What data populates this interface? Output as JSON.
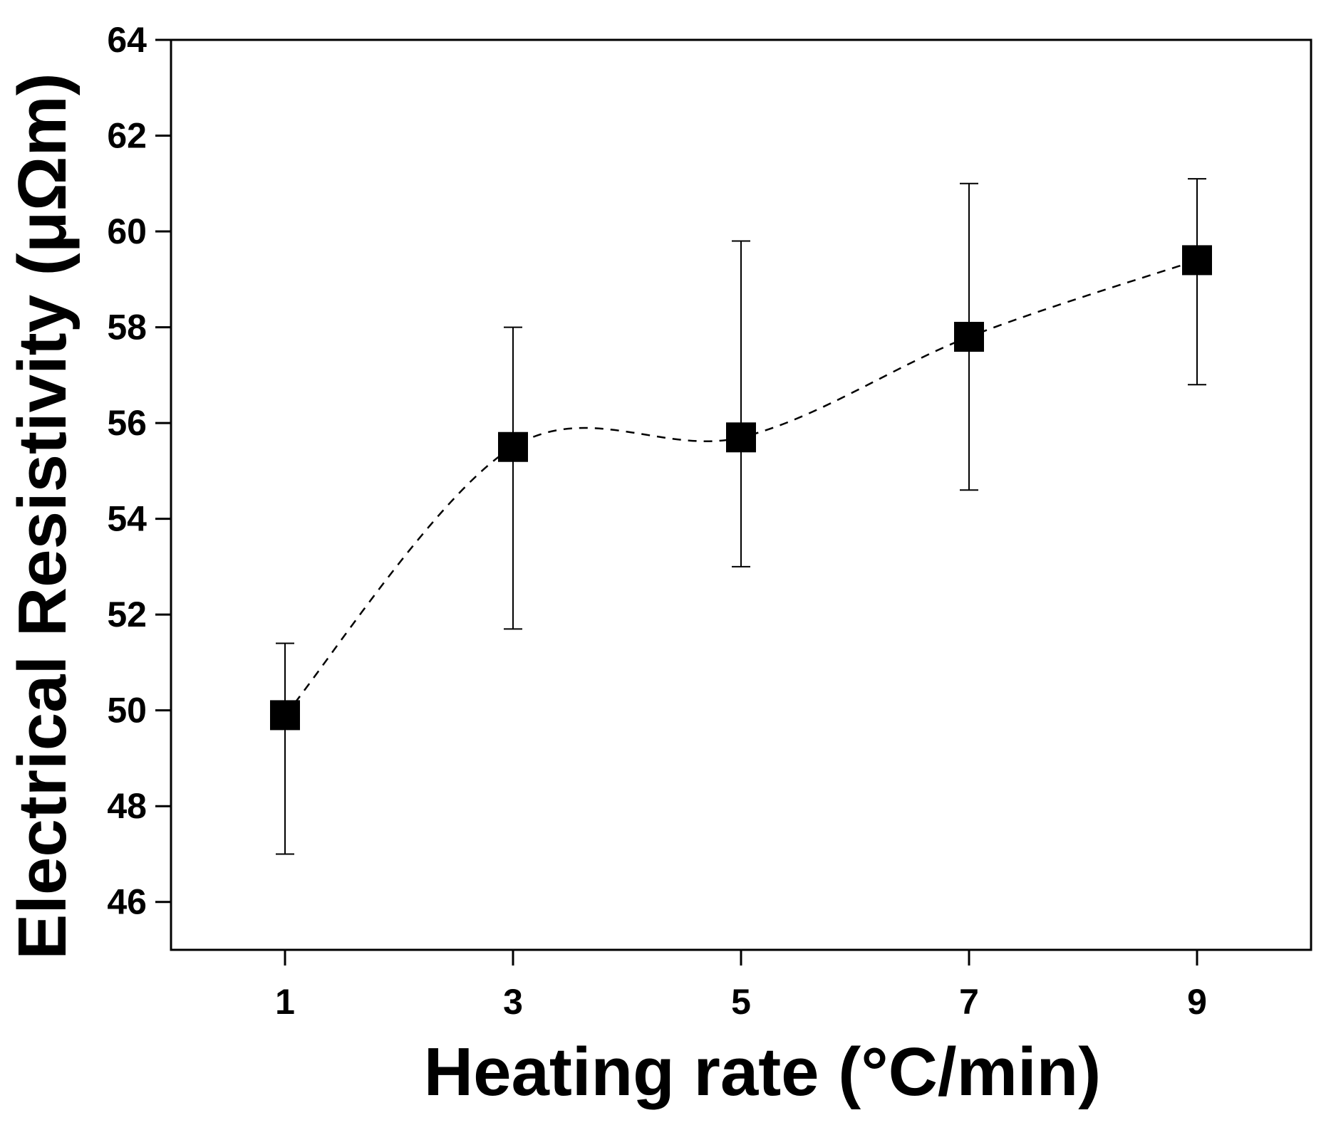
{
  "chart_data": {
    "type": "scatter",
    "title": "",
    "xlabel": "Heating rate (°C/min)",
    "ylabel": "Electrical Resistivity (μΩm)",
    "xlim": [
      0,
      10
    ],
    "ylim": [
      45,
      64
    ],
    "xticks": [
      1,
      3,
      5,
      7,
      9
    ],
    "yticks": [
      46,
      48,
      50,
      52,
      54,
      56,
      58,
      60,
      62,
      64
    ],
    "grid": false,
    "series": [
      {
        "name": "Electrical Resistivity",
        "marker": "square",
        "line": "dashed-smooth",
        "x": [
          1,
          3,
          5,
          7,
          9
        ],
        "y": [
          49.9,
          55.5,
          55.7,
          57.8,
          59.4
        ],
        "error_low": [
          47.0,
          51.7,
          53.0,
          54.6,
          56.8
        ],
        "error_high": [
          51.4,
          58.0,
          59.8,
          61.0,
          61.1
        ]
      }
    ]
  }
}
